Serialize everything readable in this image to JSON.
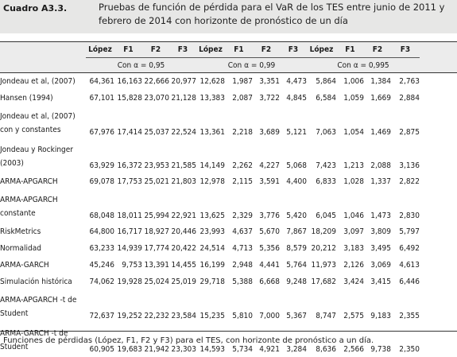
{
  "header": {
    "label": "Cuadro A3.3.",
    "title": "Pruebas de función de pérdida para el VaR de los TES entre junio de 2011 y febrero de 2014 con horizonte de pronóstico de un día"
  },
  "table": {
    "columns": [
      "López",
      "F1",
      "F2",
      "F3",
      "López",
      "F1",
      "F2",
      "F3",
      "López",
      "F1",
      "F2",
      "F3"
    ],
    "groups": [
      "Con α = 0,95",
      "Con α = 0,99",
      "Con α = 0,995"
    ],
    "rows": [
      {
        "label": "Jondeau et al, (2007)",
        "values": [
          "64,361",
          "16,163",
          "22,666",
          "20,977",
          "12,628",
          "1,987",
          "3,351",
          "4,473",
          "5,864",
          "1,006",
          "1,384",
          "2,763"
        ]
      },
      {
        "label": "Hansen (1994)",
        "values": [
          "67,101",
          "15,828",
          "23,070",
          "21,128",
          "13,383",
          "2,087",
          "3,722",
          "4,845",
          "6,584",
          "1,059",
          "1,669",
          "2,884"
        ]
      },
      {
        "label": "Jondeau et al, (2007) con y constantes",
        "values": [
          "67,976",
          "17,414",
          "25,037",
          "22,524",
          "13,361",
          "2,218",
          "3,689",
          "5,121",
          "7,063",
          "1,054",
          "1,469",
          "2,875"
        ]
      },
      {
        "label": "Jondeau y Rockinger (2003)",
        "values": [
          "63,929",
          "16,372",
          "23,953",
          "21,585",
          "14,149",
          "2,262",
          "4,227",
          "5,068",
          "7,423",
          "1,213",
          "2,088",
          "3,136"
        ]
      },
      {
        "label": "ARMA-APGARCH",
        "values": [
          "69,078",
          "17,753",
          "25,021",
          "21,803",
          "12,978",
          "2,115",
          "3,591",
          "4,400",
          "6,833",
          "1,028",
          "1,337",
          "2,822"
        ]
      },
      {
        "label": "ARMA-APGARCH constante",
        "values": [
          "68,048",
          "18,011",
          "25,994",
          "22,921",
          "13,625",
          "2,329",
          "3,776",
          "5,420",
          "6,045",
          "1,046",
          "1,473",
          "2,830"
        ]
      },
      {
        "label": "RiskMetrics",
        "values": [
          "64,800",
          "16,717",
          "18,927",
          "20,446",
          "23,993",
          "4,637",
          "5,670",
          "7,867",
          "18,209",
          "3,097",
          "3,809",
          "5,797"
        ]
      },
      {
        "label": "Normalidad",
        "values": [
          "63,233",
          "14,939",
          "17,774",
          "20,422",
          "24,514",
          "4,713",
          "5,356",
          "8,579",
          "20,212",
          "3,183",
          "3,495",
          "6,492"
        ]
      },
      {
        "label": "ARMA-GARCH",
        "values": [
          "45,246",
          "9,753",
          "13,391",
          "14,455",
          "16,199",
          "2,948",
          "4,441",
          "5,764",
          "11,973",
          "2,126",
          "3,069",
          "4,613"
        ]
      },
      {
        "label": "Simulación histórica",
        "values": [
          "74,062",
          "19,928",
          "25,024",
          "25,019",
          "29,718",
          "5,388",
          "6,668",
          "9,248",
          "17,682",
          "3,424",
          "3,415",
          "6,446"
        ]
      },
      {
        "label": "ARMA-APGARCH -t de Student",
        "values": [
          "72,637",
          "19,252",
          "22,232",
          "23,584",
          "15,235",
          "5,810",
          "7,000",
          "5,367",
          "8,747",
          "2,575",
          "9,183",
          "2,355"
        ]
      },
      {
        "label": "ARMA-GARCH -t de Student",
        "values": [
          "60,905",
          "19,683",
          "21,942",
          "23,303",
          "14,593",
          "5,734",
          "4,921",
          "3,284",
          "8,636",
          "2,566",
          "9,738",
          "2,350"
        ]
      }
    ]
  },
  "footer": "Funciones de pérdidas (López, F1, F2 y F3) para el TES, con horizonte de pronóstico a un día."
}
